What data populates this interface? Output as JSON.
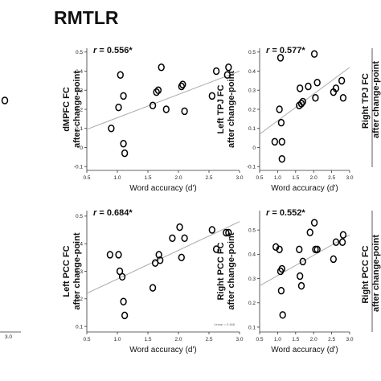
{
  "figure": {
    "title": "RMTLR",
    "edge_labels": {
      "left_tick": "3.0",
      "right_top_ylabel": [
        "Right TPJ FC",
        "after change-point"
      ],
      "right_bottom_ylabel": [
        "Right PCC FC",
        "after change-point"
      ]
    }
  },
  "chart_data": [
    {
      "type": "scatter",
      "name": "dmpfc",
      "r_label": {
        "prefix": "r",
        "value": " = 0.556*"
      },
      "ylabel": [
        "dMPFC FC",
        "after change-point"
      ],
      "xlabel": "Word accuracy (d')",
      "xlim": [
        0.5,
        3.0
      ],
      "ylim": [
        -0.12,
        0.52
      ],
      "xticks": [
        "0.5",
        "1.0",
        "1.5",
        "2.0",
        "2.5",
        "3.0"
      ],
      "yticks": [
        "-0.1",
        "0",
        "0.1",
        "0.2",
        "0.3",
        "0.4",
        "0.5"
      ],
      "x": [
        0.9,
        1.02,
        1.05,
        1.1,
        1.1,
        1.12,
        1.58,
        1.64,
        1.67,
        1.72,
        1.8,
        2.05,
        2.07,
        2.1,
        2.55,
        2.62,
        2.8,
        2.82
      ],
      "y": [
        0.1,
        0.21,
        0.38,
        0.27,
        0.02,
        -0.03,
        0.22,
        0.29,
        0.3,
        0.42,
        0.2,
        0.32,
        0.33,
        0.19,
        0.27,
        0.4,
        0.38,
        0.42
      ],
      "fit": [
        [
          0.5,
          0.095
        ],
        [
          3.0,
          0.4
        ]
      ],
      "grid": false
    },
    {
      "type": "scatter",
      "name": "left-tpj",
      "r_label": {
        "prefix": "r",
        "value": " = 0.577*"
      },
      "ylabel": [
        "Left TPJ FC",
        "after change-point"
      ],
      "xlabel": "Word accuracy (d')",
      "xlim": [
        0.5,
        3.0
      ],
      "ylim": [
        -0.12,
        0.52
      ],
      "xticks": [
        "0.5",
        "1.0",
        "1.5",
        "2.0",
        "2.5",
        "3.0"
      ],
      "yticks": [
        "-0.1",
        "0",
        "0.1",
        "0.2",
        "0.3",
        "0.4",
        "0.5"
      ],
      "x": [
        0.92,
        1.05,
        1.08,
        1.1,
        1.12,
        1.12,
        1.6,
        1.62,
        1.66,
        1.7,
        1.85,
        2.02,
        2.05,
        2.1,
        2.55,
        2.62,
        2.78,
        2.82
      ],
      "y": [
        0.03,
        0.2,
        0.47,
        0.13,
        0.03,
        -0.06,
        0.22,
        0.31,
        0.23,
        0.24,
        0.32,
        0.49,
        0.26,
        0.34,
        0.29,
        0.31,
        0.35,
        0.26
      ],
      "fit": [
        [
          0.5,
          0.07
        ],
        [
          3.0,
          0.42
        ]
      ],
      "grid": false
    },
    {
      "type": "scatter",
      "name": "left-pcc",
      "r_label": {
        "prefix": "r",
        "value": " = 0.684*"
      },
      "ylabel": [
        "Left PCC FC",
        "after change-point"
      ],
      "xlabel": "Word accuracy (d')",
      "xlim": [
        0.5,
        3.0
      ],
      "ylim": [
        0.08,
        0.52
      ],
      "xticks": [
        "0.5",
        "1.0",
        "1.5",
        "2.0",
        "2.5",
        "3.0"
      ],
      "yticks": [
        "0.1",
        "0.2",
        "0.3",
        "0.4",
        "0.5"
      ],
      "x": [
        0.88,
        1.02,
        1.04,
        1.08,
        1.1,
        1.12,
        1.58,
        1.62,
        1.68,
        1.7,
        1.9,
        2.02,
        2.05,
        2.1,
        2.55,
        2.62,
        2.78,
        2.82
      ],
      "y": [
        0.36,
        0.36,
        0.3,
        0.28,
        0.19,
        0.14,
        0.24,
        0.33,
        0.36,
        0.34,
        0.42,
        0.46,
        0.35,
        0.42,
        0.45,
        0.38,
        0.44,
        0.44
      ],
      "fit": [
        [
          0.5,
          0.22
        ],
        [
          3.0,
          0.48
        ]
      ],
      "legend_note": "Linear = 0.468",
      "grid": false
    },
    {
      "type": "scatter",
      "name": "right-pcc",
      "r_label": {
        "prefix": "r",
        "value": " = 0.552*"
      },
      "ylabel": [
        "Right PCC FC",
        "after change-point"
      ],
      "xlabel": "Word accuracy (d')",
      "xlim": [
        0.5,
        3.0
      ],
      "ylim": [
        0.08,
        0.58
      ],
      "xticks": [
        "0.5",
        "1.0",
        "1.5",
        "2.0",
        "2.5",
        "3.0"
      ],
      "yticks": [
        "0.1",
        "0.2",
        "0.3",
        "0.4",
        "0.5"
      ],
      "x": [
        0.95,
        1.05,
        1.08,
        1.1,
        1.12,
        1.14,
        1.6,
        1.62,
        1.66,
        1.7,
        1.9,
        2.02,
        2.05,
        2.1,
        2.55,
        2.62,
        2.8,
        2.82
      ],
      "y": [
        0.43,
        0.42,
        0.33,
        0.25,
        0.34,
        0.15,
        0.42,
        0.31,
        0.27,
        0.37,
        0.49,
        0.53,
        0.42,
        0.42,
        0.38,
        0.45,
        0.45,
        0.48
      ],
      "fit": [
        [
          0.5,
          0.27
        ],
        [
          3.0,
          0.48
        ]
      ],
      "grid": false
    }
  ]
}
